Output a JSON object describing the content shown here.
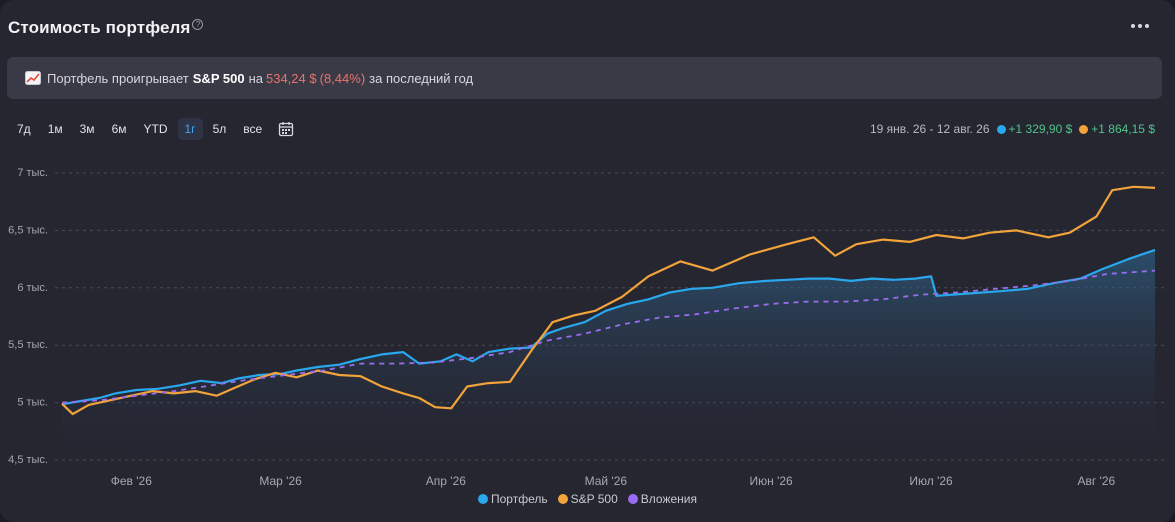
{
  "header": {
    "title": "Стоимость портфеля",
    "help_glyph": "?"
  },
  "banner": {
    "prefix": "Портфель проигрывает",
    "benchmark": "S&P 500",
    "on": "на",
    "amount": "534,24 $",
    "pct_open": "(",
    "pct": "8,44%",
    "pct_close": ")",
    "suffix": "за последний год"
  },
  "ranges": [
    "7д",
    "1м",
    "3м",
    "6м",
    "YTD",
    "1г",
    "5л",
    "все"
  ],
  "active_range": "1г",
  "summary": {
    "period": "19 янв. 26 - 12 авг. 26",
    "portfolio_change": "+1 329,90 $",
    "sp500_change": "+1 864,15 $"
  },
  "colors": {
    "portfolio": "#29a8ee",
    "sp500": "#f2a33a",
    "investments": "#9b6cf0",
    "positive": "#4fc38a",
    "negative": "#e8736b"
  },
  "chart_data": {
    "type": "line",
    "x_start": "2026-01-19",
    "x_end": "2026-08-12",
    "x_ticks": [
      {
        "date": "2026-02-01",
        "label": "Фев '26"
      },
      {
        "date": "2026-03-01",
        "label": "Мар '26"
      },
      {
        "date": "2026-04-01",
        "label": "Апр '26"
      },
      {
        "date": "2026-05-01",
        "label": "Май '26"
      },
      {
        "date": "2026-06-01",
        "label": "Июн '26"
      },
      {
        "date": "2026-07-01",
        "label": "Июл '26"
      },
      {
        "date": "2026-08-01",
        "label": "Авг '26"
      }
    ],
    "ylim": [
      4500,
      7000
    ],
    "y_ticks": [
      {
        "value": 4500,
        "label": "4,5 тыс."
      },
      {
        "value": 5000,
        "label": "5 тыс."
      },
      {
        "value": 5500,
        "label": "5,5 тыс."
      },
      {
        "value": 6000,
        "label": "6 тыс."
      },
      {
        "value": 6500,
        "label": "6,5 тыс."
      },
      {
        "value": 7000,
        "label": "7 тыс."
      }
    ],
    "grid": true,
    "legend_position": "bottom",
    "series": [
      {
        "name": "Портфель",
        "style": "solid-area",
        "points": [
          [
            "2026-01-19",
            4985
          ],
          [
            "2026-01-22",
            5010
          ],
          [
            "2026-01-26",
            5040
          ],
          [
            "2026-01-29",
            5080
          ],
          [
            "2026-02-02",
            5110
          ],
          [
            "2026-02-06",
            5120
          ],
          [
            "2026-02-10",
            5150
          ],
          [
            "2026-02-14",
            5190
          ],
          [
            "2026-02-18",
            5170
          ],
          [
            "2026-02-21",
            5210
          ],
          [
            "2026-02-25",
            5240
          ],
          [
            "2026-03-01",
            5250
          ],
          [
            "2026-03-04",
            5280
          ],
          [
            "2026-03-08",
            5310
          ],
          [
            "2026-03-12",
            5330
          ],
          [
            "2026-03-16",
            5380
          ],
          [
            "2026-03-20",
            5420
          ],
          [
            "2026-03-24",
            5440
          ],
          [
            "2026-03-27",
            5340
          ],
          [
            "2026-03-31",
            5360
          ],
          [
            "2026-04-03",
            5420
          ],
          [
            "2026-04-06",
            5360
          ],
          [
            "2026-04-09",
            5440
          ],
          [
            "2026-04-13",
            5470
          ],
          [
            "2026-04-17",
            5480
          ],
          [
            "2026-04-20",
            5600
          ],
          [
            "2026-04-23",
            5650
          ],
          [
            "2026-04-27",
            5700
          ],
          [
            "2026-05-01",
            5800
          ],
          [
            "2026-05-05",
            5860
          ],
          [
            "2026-05-09",
            5900
          ],
          [
            "2026-05-13",
            5960
          ],
          [
            "2026-05-17",
            5990
          ],
          [
            "2026-05-21",
            6000
          ],
          [
            "2026-05-26",
            6040
          ],
          [
            "2026-05-31",
            6060
          ],
          [
            "2026-06-04",
            6070
          ],
          [
            "2026-06-08",
            6080
          ],
          [
            "2026-06-12",
            6080
          ],
          [
            "2026-06-16",
            6060
          ],
          [
            "2026-06-20",
            6080
          ],
          [
            "2026-06-24",
            6070
          ],
          [
            "2026-06-28",
            6080
          ],
          [
            "2026-07-01",
            6100
          ],
          [
            "2026-07-02",
            5930
          ],
          [
            "2026-07-08",
            5950
          ],
          [
            "2026-07-14",
            5970
          ],
          [
            "2026-07-19",
            5990
          ],
          [
            "2026-07-24",
            6040
          ],
          [
            "2026-07-29",
            6080
          ],
          [
            "2026-08-02",
            6160
          ],
          [
            "2026-08-07",
            6250
          ],
          [
            "2026-08-12",
            6330
          ]
        ]
      },
      {
        "name": "S&P 500",
        "style": "solid",
        "points": [
          [
            "2026-01-19",
            4990
          ],
          [
            "2026-01-21",
            4900
          ],
          [
            "2026-01-24",
            4980
          ],
          [
            "2026-01-28",
            5020
          ],
          [
            "2026-02-01",
            5060
          ],
          [
            "2026-02-05",
            5100
          ],
          [
            "2026-02-09",
            5080
          ],
          [
            "2026-02-13",
            5100
          ],
          [
            "2026-02-17",
            5060
          ],
          [
            "2026-02-20",
            5120
          ],
          [
            "2026-02-24",
            5200
          ],
          [
            "2026-02-28",
            5260
          ],
          [
            "2026-03-04",
            5220
          ],
          [
            "2026-03-08",
            5280
          ],
          [
            "2026-03-12",
            5240
          ],
          [
            "2026-03-16",
            5230
          ],
          [
            "2026-03-20",
            5140
          ],
          [
            "2026-03-24",
            5080
          ],
          [
            "2026-03-27",
            5040
          ],
          [
            "2026-03-30",
            4960
          ],
          [
            "2026-04-02",
            4950
          ],
          [
            "2026-04-05",
            5140
          ],
          [
            "2026-04-09",
            5170
          ],
          [
            "2026-04-13",
            5180
          ],
          [
            "2026-04-17",
            5450
          ],
          [
            "2026-04-21",
            5700
          ],
          [
            "2026-04-25",
            5760
          ],
          [
            "2026-04-29",
            5800
          ],
          [
            "2026-05-04",
            5920
          ],
          [
            "2026-05-09",
            6100
          ],
          [
            "2026-05-15",
            6230
          ],
          [
            "2026-05-21",
            6150
          ],
          [
            "2026-05-28",
            6290
          ],
          [
            "2026-06-04",
            6380
          ],
          [
            "2026-06-09",
            6440
          ],
          [
            "2026-06-13",
            6280
          ],
          [
            "2026-06-17",
            6380
          ],
          [
            "2026-06-22",
            6420
          ],
          [
            "2026-06-27",
            6400
          ],
          [
            "2026-07-02",
            6460
          ],
          [
            "2026-07-07",
            6430
          ],
          [
            "2026-07-12",
            6480
          ],
          [
            "2026-07-17",
            6500
          ],
          [
            "2026-07-23",
            6440
          ],
          [
            "2026-07-27",
            6480
          ],
          [
            "2026-08-01",
            6620
          ],
          [
            "2026-08-04",
            6850
          ],
          [
            "2026-08-08",
            6880
          ],
          [
            "2026-08-12",
            6870
          ]
        ]
      },
      {
        "name": "Вложения",
        "style": "dashed",
        "points": [
          [
            "2026-01-19",
            5000
          ],
          [
            "2026-01-26",
            5020
          ],
          [
            "2026-02-02",
            5060
          ],
          [
            "2026-02-09",
            5100
          ],
          [
            "2026-02-16",
            5150
          ],
          [
            "2026-02-23",
            5200
          ],
          [
            "2026-03-02",
            5240
          ],
          [
            "2026-03-09",
            5280
          ],
          [
            "2026-03-16",
            5340
          ],
          [
            "2026-03-23",
            5340
          ],
          [
            "2026-03-30",
            5350
          ],
          [
            "2026-04-06",
            5390
          ],
          [
            "2026-04-13",
            5440
          ],
          [
            "2026-04-20",
            5540
          ],
          [
            "2026-04-27",
            5600
          ],
          [
            "2026-05-04",
            5680
          ],
          [
            "2026-05-11",
            5740
          ],
          [
            "2026-05-18",
            5770
          ],
          [
            "2026-05-25",
            5820
          ],
          [
            "2026-06-01",
            5860
          ],
          [
            "2026-06-08",
            5880
          ],
          [
            "2026-06-15",
            5880
          ],
          [
            "2026-06-22",
            5900
          ],
          [
            "2026-06-29",
            5940
          ],
          [
            "2026-07-06",
            5960
          ],
          [
            "2026-07-13",
            5990
          ],
          [
            "2026-07-20",
            6020
          ],
          [
            "2026-07-27",
            6060
          ],
          [
            "2026-08-03",
            6120
          ],
          [
            "2026-08-12",
            6150
          ]
        ]
      }
    ]
  }
}
